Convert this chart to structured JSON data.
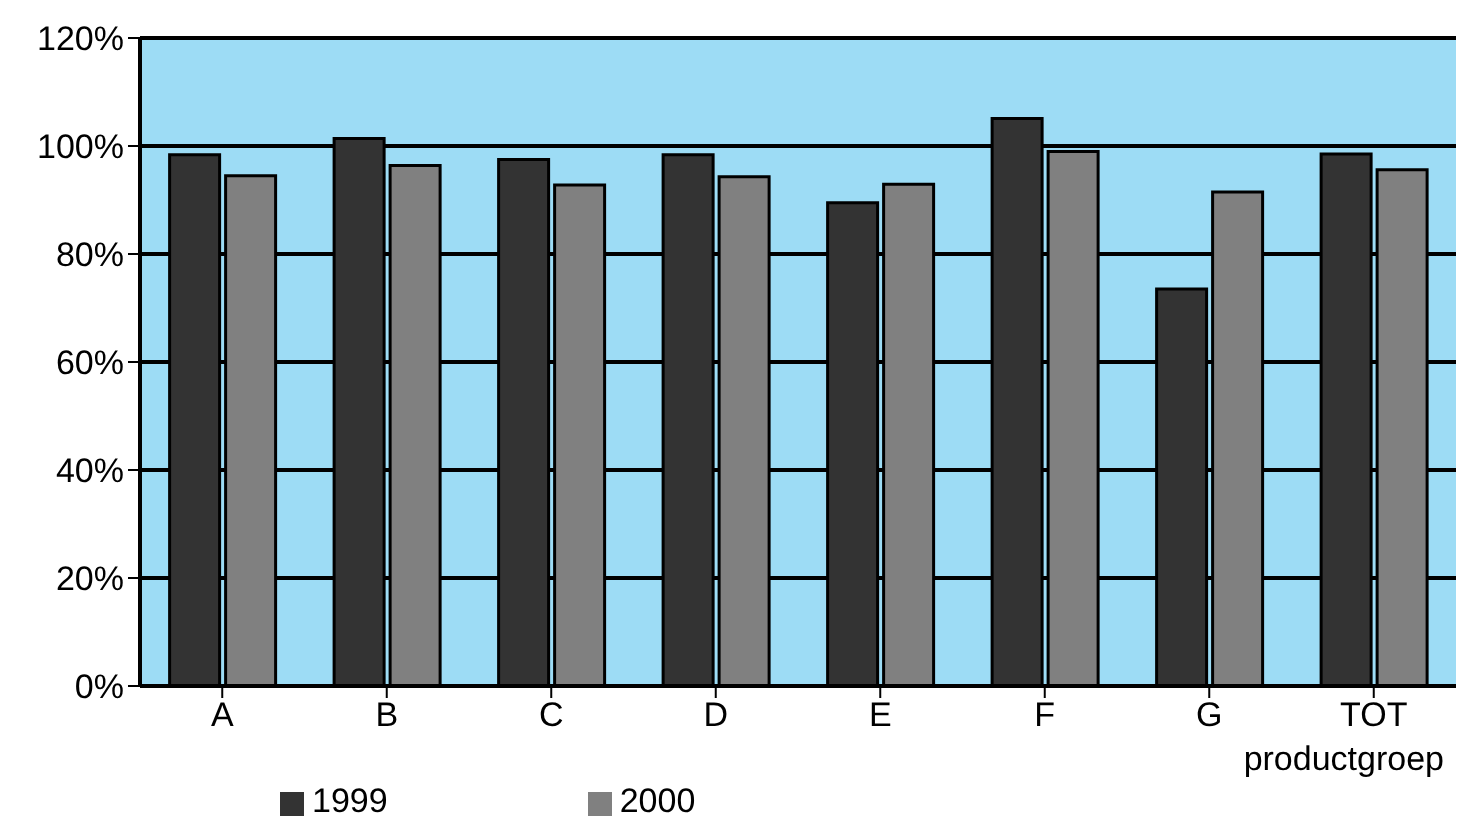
{
  "chart_data": {
    "type": "bar",
    "xlabel": "productgroep",
    "categories": [
      "A",
      "B",
      "C",
      "D",
      "E",
      "F",
      "G",
      "TOT"
    ],
    "series": [
      {
        "name": "1999",
        "color": "#333333",
        "values": [
          98.4,
          101.4,
          97.5,
          98.4,
          89.5,
          105.1,
          73.5,
          98.5
        ]
      },
      {
        "name": "2000",
        "color": "#808080",
        "values": [
          94.5,
          96.4,
          92.8,
          94.3,
          92.9,
          99,
          91.5,
          95.6
        ]
      }
    ],
    "ylim": [
      0,
      120
    ],
    "yticks": [
      {
        "value": 0,
        "label": "0%"
      },
      {
        "value": 20,
        "label": "20%"
      },
      {
        "value": 40,
        "label": "40%"
      },
      {
        "value": 60,
        "label": "60%"
      },
      {
        "value": 80,
        "label": "80%"
      },
      {
        "value": 100,
        "label": "100%"
      },
      {
        "value": 120,
        "label": "120%"
      }
    ],
    "grid": "y",
    "legend": "bottom"
  }
}
